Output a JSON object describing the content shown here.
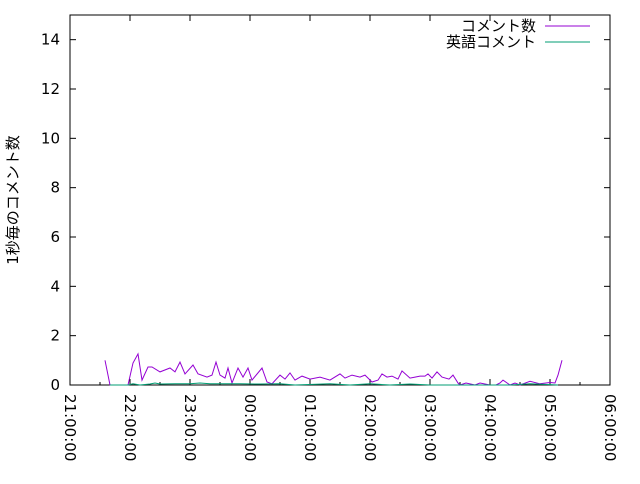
{
  "chart_data": {
    "type": "line",
    "title": "",
    "xlabel": "",
    "ylabel": "1秒毎のコメント数",
    "xlim": [
      "21:00:00",
      "06:00:00"
    ],
    "ylim": [
      0,
      15
    ],
    "xticks": [
      "21:00:00",
      "22:00:00",
      "23:00:00",
      "00:00:00",
      "01:00:00",
      "02:00:00",
      "03:00:00",
      "04:00:00",
      "05:00:00",
      "06:00:00"
    ],
    "yticks": [
      0,
      2,
      4,
      6,
      8,
      10,
      12,
      14
    ],
    "grid": false,
    "legend": "top-right",
    "series": [
      {
        "name": "コメント数",
        "color": "#9400d3",
        "points": [
          [
            "21:35",
            1.0
          ],
          [
            "21:40",
            0
          ],
          [
            "21:58",
            0
          ],
          [
            "22:03",
            0.89
          ],
          [
            "22:08",
            1.26
          ],
          [
            "22:12",
            0.2
          ],
          [
            "22:18",
            0.73
          ],
          [
            "22:22",
            0.73
          ],
          [
            "22:30",
            0.53
          ],
          [
            "22:40",
            0.69
          ],
          [
            "22:45",
            0.53
          ],
          [
            "22:50",
            0.93
          ],
          [
            "22:55",
            0.45
          ],
          [
            "23:03",
            0.81
          ],
          [
            "23:08",
            0.45
          ],
          [
            "23:17",
            0.32
          ],
          [
            "23:22",
            0.4
          ],
          [
            "23:26",
            0.93
          ],
          [
            "23:30",
            0.4
          ],
          [
            "23:35",
            0.28
          ],
          [
            "23:38",
            0.69
          ],
          [
            "23:42",
            0.08
          ],
          [
            "23:48",
            0.69
          ],
          [
            "23:53",
            0.32
          ],
          [
            "23:58",
            0.69
          ],
          [
            "00:02",
            0.2
          ],
          [
            "00:12",
            0.69
          ],
          [
            "00:17",
            0.12
          ],
          [
            "00:22",
            0.05
          ],
          [
            "00:30",
            0.4
          ],
          [
            "00:35",
            0.24
          ],
          [
            "00:40",
            0.49
          ],
          [
            "00:45",
            0.2
          ],
          [
            "00:52",
            0.36
          ],
          [
            "01:00",
            0.24
          ],
          [
            "01:10",
            0.32
          ],
          [
            "01:20",
            0.2
          ],
          [
            "01:30",
            0.45
          ],
          [
            "01:35",
            0.28
          ],
          [
            "01:42",
            0.4
          ],
          [
            "01:50",
            0.32
          ],
          [
            "01:55",
            0.4
          ],
          [
            "02:02",
            0.12
          ],
          [
            "02:08",
            0.2
          ],
          [
            "02:12",
            0.45
          ],
          [
            "02:17",
            0.32
          ],
          [
            "02:22",
            0.36
          ],
          [
            "02:28",
            0.24
          ],
          [
            "02:32",
            0.57
          ],
          [
            "02:40",
            0.28
          ],
          [
            "02:45",
            0.32
          ],
          [
            "02:50",
            0.36
          ],
          [
            "02:55",
            0.36
          ],
          [
            "02:58",
            0.45
          ],
          [
            "03:02",
            0.28
          ],
          [
            "03:07",
            0.53
          ],
          [
            "03:12",
            0.32
          ],
          [
            "03:19",
            0.24
          ],
          [
            "03:23",
            0.4
          ],
          [
            "03:28",
            0.08
          ],
          [
            "03:30",
            0
          ],
          [
            "03:36",
            0.08
          ],
          [
            "03:45",
            0
          ],
          [
            "03:50",
            0.08
          ],
          [
            "04:00",
            0
          ],
          [
            "04:06",
            0
          ],
          [
            "04:10",
            0.08
          ],
          [
            "04:13",
            0.2
          ],
          [
            "04:20",
            0
          ],
          [
            "04:25",
            0.08
          ],
          [
            "04:30",
            0
          ],
          [
            "04:40",
            0.15
          ],
          [
            "04:50",
            0.05
          ],
          [
            "05:00",
            0.1
          ],
          [
            "05:05",
            0.08
          ],
          [
            "05:08",
            0.4
          ],
          [
            "05:12",
            1.0
          ]
        ]
      },
      {
        "name": "英語コメント",
        "color": "#009e73",
        "points": [
          [
            "21:40",
            0
          ],
          [
            "21:58",
            0
          ],
          [
            "22:03",
            0.05
          ],
          [
            "22:10",
            0
          ],
          [
            "22:20",
            0.04
          ],
          [
            "22:25",
            0.08
          ],
          [
            "22:30",
            0.04
          ],
          [
            "22:45",
            0.05
          ],
          [
            "23:00",
            0.05
          ],
          [
            "23:10",
            0.08
          ],
          [
            "23:20",
            0.05
          ],
          [
            "23:40",
            0.05
          ],
          [
            "23:50",
            0.05
          ],
          [
            "00:10",
            0.04
          ],
          [
            "00:30",
            0.05
          ],
          [
            "00:45",
            0
          ],
          [
            "01:20",
            0.05
          ],
          [
            "01:40",
            0
          ],
          [
            "02:00",
            0.05
          ],
          [
            "02:20",
            0
          ],
          [
            "02:40",
            0.04
          ],
          [
            "03:00",
            0
          ],
          [
            "03:30",
            0
          ],
          [
            "04:20",
            0
          ],
          [
            "04:40",
            0.05
          ],
          [
            "05:08",
            0
          ]
        ]
      }
    ]
  }
}
